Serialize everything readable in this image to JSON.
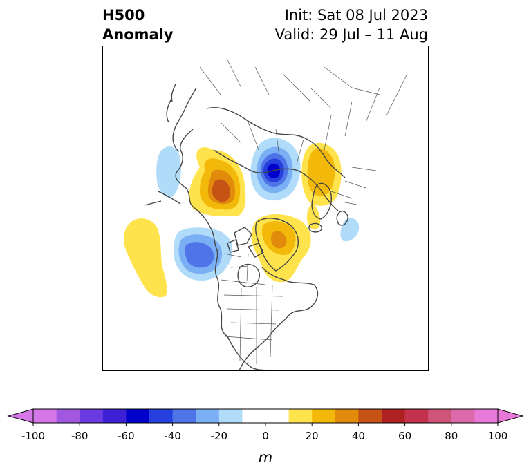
{
  "header": {
    "title_line1": "H500",
    "title_line2": "Anomaly",
    "init": "Init: Sat 08 Jul 2023",
    "valid": "Valid: 29 Jul – 11 Aug"
  },
  "colorbar": {
    "levels": [
      -100,
      -90,
      -80,
      -70,
      -60,
      -50,
      -40,
      -30,
      -20,
      -10,
      10,
      20,
      30,
      40,
      50,
      60,
      70,
      80,
      90,
      100
    ],
    "colors": [
      "#d677e8",
      "#a157e0",
      "#6b3ae0",
      "#3e21d6",
      "#0000cc",
      "#2540dc",
      "#4e74e8",
      "#7ab0f3",
      "#b0dcfa",
      "#ffffff",
      "#ffe34d",
      "#f3b90a",
      "#e08b0b",
      "#c65215",
      "#b02020",
      "#c2324c",
      "#d0547a",
      "#dc69aa",
      "#e879d8"
    ],
    "under_color": "#d677e8",
    "over_color": "#e879d8",
    "ticks": [
      "-100",
      "-80",
      "-60",
      "-40",
      "-20",
      "0",
      "20",
      "40",
      "60",
      "80",
      "100"
    ],
    "unit": "m"
  },
  "map": {
    "anomalies": [
      {
        "sign": "negative",
        "max": 50,
        "location": "Arctic / North Pole"
      },
      {
        "sign": "positive",
        "max": 50,
        "location": "Northeast Siberia"
      },
      {
        "sign": "positive",
        "max": 30,
        "location": "Northern Europe / Scandinavia"
      },
      {
        "sign": "positive",
        "max": 30,
        "location": "Greenland / Canadian Archipelago"
      },
      {
        "sign": "negative",
        "max": 40,
        "location": "Gulf of Alaska"
      },
      {
        "sign": "positive",
        "max": 10,
        "location": "Eastern North Pacific"
      },
      {
        "sign": "negative",
        "max": 10,
        "location": "Western Bering Sea"
      },
      {
        "sign": "negative",
        "max": 10,
        "location": "North Atlantic east of Greenland"
      }
    ]
  }
}
